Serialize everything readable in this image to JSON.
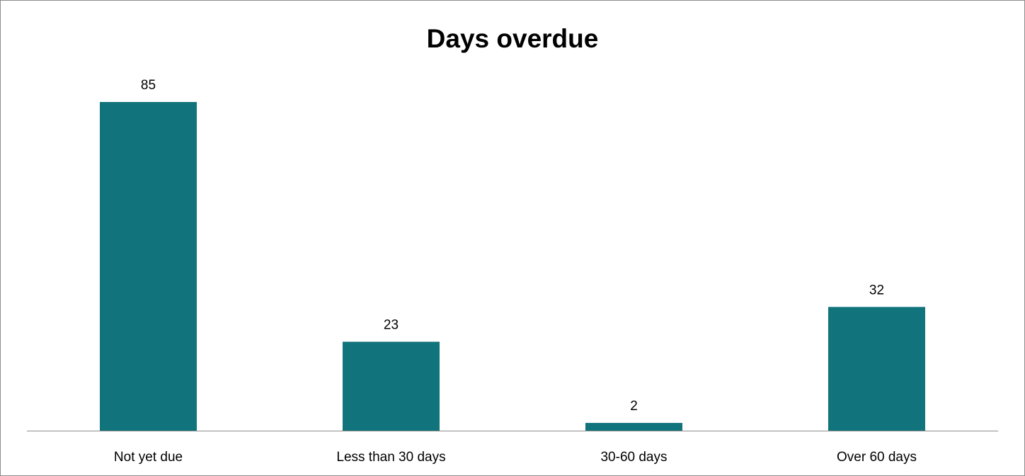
{
  "chart_data": {
    "type": "bar",
    "title": "Days overdue",
    "xlabel": "",
    "ylabel": "",
    "categories": [
      "Not yet due",
      "Less than 30 days",
      "30-60 days",
      "Over 60 days"
    ],
    "values": [
      85,
      23,
      2,
      32
    ],
    "data_labels": [
      "85",
      "23",
      "2",
      "32"
    ],
    "ylim": [
      0,
      85
    ],
    "grid": false,
    "legend": "none",
    "bar_color": "#11737b",
    "axis_color": "#8c8c8c"
  }
}
